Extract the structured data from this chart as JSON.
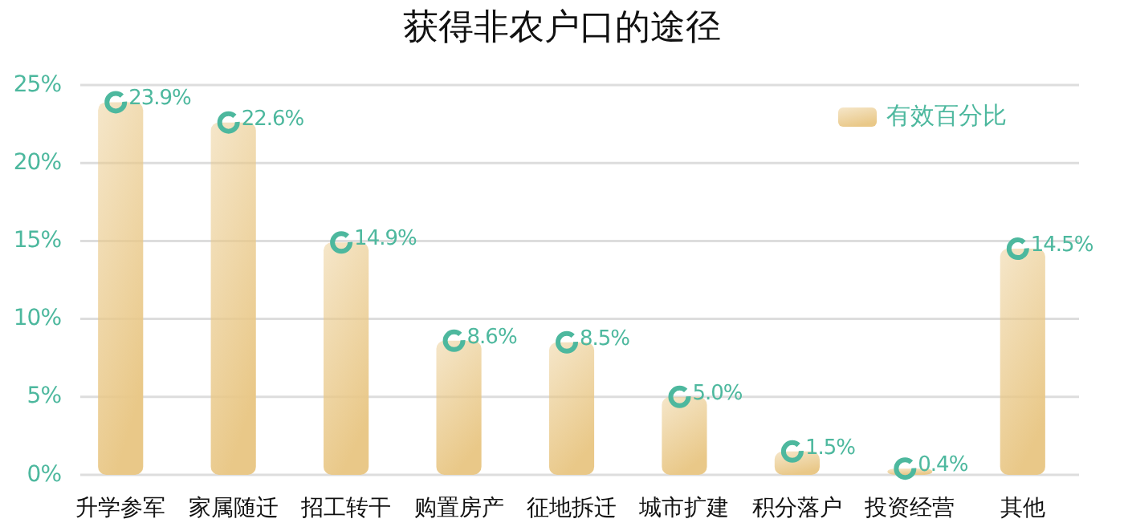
{
  "chart_data": {
    "type": "bar",
    "title": "获得非农户口的途径",
    "categories": [
      "升学参军",
      "家属随迁",
      "招工转干",
      "购置房产",
      "征地拆迁",
      "城市扩建",
      "积分落户",
      "投资经营",
      "其他"
    ],
    "series": [
      {
        "name": "有效百分比",
        "color": "#e9c888",
        "values": [
          23.9,
          22.6,
          14.9,
          8.6,
          8.5,
          5.0,
          1.5,
          0.4,
          14.5
        ],
        "value_labels": [
          "23.9%",
          "22.6%",
          "14.9%",
          "8.6%",
          "8.5%",
          "5.0%",
          "1.5%",
          "0.4%",
          "14.5%"
        ]
      }
    ],
    "ylim": [
      0,
      25
    ],
    "yticks": [
      {
        "value": 0,
        "label": "0%"
      },
      {
        "value": 5,
        "label": "5%"
      },
      {
        "value": 10,
        "label": "10%"
      },
      {
        "value": 15,
        "label": "15%"
      },
      {
        "value": 20,
        "label": "20%"
      },
      {
        "value": 25,
        "label": "25%"
      }
    ],
    "grid": "y",
    "legend": "top right"
  }
}
